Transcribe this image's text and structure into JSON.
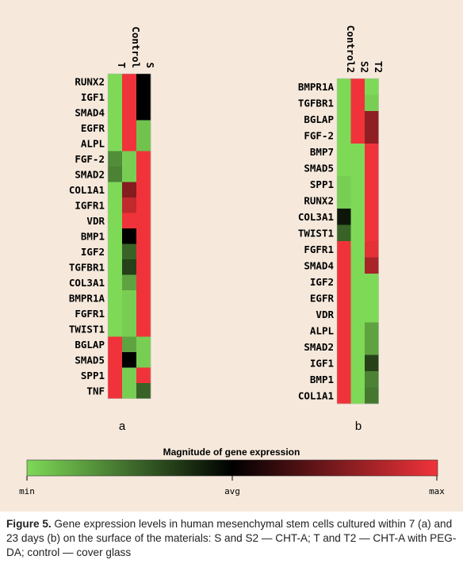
{
  "chart_data": [
    {
      "type": "heatmap",
      "panel": "a",
      "columns": [
        "T",
        "Control",
        "S"
      ],
      "rows": [
        "RUNX2",
        "IGF1",
        "SMAD4",
        "EGFR",
        "ALPL",
        "FGF-2",
        "SMAD2",
        "COL1A1",
        "IGFR1",
        "VDR",
        "BMP1",
        "IGF2",
        "TGFBR1",
        "COL3A1",
        "BMPR1A",
        "FGFR1",
        "TWIST1",
        "BGLAP",
        "SMAD5",
        "SPP1",
        "TNF"
      ],
      "values": [
        [
          -1.0,
          1.0,
          0.0
        ],
        [
          -1.0,
          1.0,
          0.0
        ],
        [
          -1.0,
          1.0,
          0.0
        ],
        [
          -1.0,
          1.0,
          -0.9
        ],
        [
          -1.0,
          1.0,
          -0.9
        ],
        [
          -0.65,
          -0.95,
          1.0
        ],
        [
          -0.6,
          -0.95,
          1.0
        ],
        [
          -1.0,
          0.55,
          1.0
        ],
        [
          -1.0,
          0.8,
          1.0
        ],
        [
          -1.0,
          1.0,
          1.0
        ],
        [
          -1.0,
          0.0,
          1.0
        ],
        [
          -1.0,
          -0.45,
          1.0
        ],
        [
          -1.0,
          -0.3,
          1.0
        ],
        [
          -1.0,
          -0.75,
          1.0
        ],
        [
          -1.0,
          -0.95,
          1.0
        ],
        [
          -1.0,
          -0.95,
          1.0
        ],
        [
          -1.0,
          -0.95,
          1.0
        ],
        [
          1.0,
          -0.75,
          -0.95
        ],
        [
          1.0,
          0.0,
          -0.95
        ],
        [
          1.0,
          -0.95,
          1.0
        ],
        [
          1.0,
          -0.95,
          -0.45
        ]
      ]
    },
    {
      "type": "heatmap",
      "panel": "b",
      "columns": [
        "Control2",
        "S2",
        "T2"
      ],
      "rows": [
        "BMPR1A",
        "TGFBR1",
        "BGLAP",
        "FGF-2",
        "BMP7",
        "SMAD5",
        "SPP1",
        "RUNX2",
        "COL3A1",
        "TWIST1",
        "FGFR1",
        "SMAD4",
        "IGF2",
        "EGFR",
        "VDR",
        "ALPL",
        "SMAD2",
        "IGF1",
        "BMP1",
        "COL1A1"
      ],
      "values": [
        [
          -1.0,
          1.0,
          -1.0
        ],
        [
          -1.0,
          1.0,
          -0.95
        ],
        [
          -1.0,
          1.0,
          0.6
        ],
        [
          -1.0,
          1.0,
          0.6
        ],
        [
          -1.0,
          -1.0,
          1.0
        ],
        [
          -1.0,
          -1.0,
          1.0
        ],
        [
          -0.95,
          -1.0,
          1.0
        ],
        [
          -0.95,
          -1.0,
          1.0
        ],
        [
          -0.1,
          -1.0,
          1.0
        ],
        [
          -0.45,
          -1.0,
          1.0
        ],
        [
          1.0,
          -1.0,
          0.95
        ],
        [
          1.0,
          -1.0,
          0.7
        ],
        [
          1.0,
          -1.0,
          -1.0
        ],
        [
          1.0,
          -1.0,
          -1.0
        ],
        [
          1.0,
          -1.0,
          -1.0
        ],
        [
          1.0,
          -1.0,
          -0.75
        ],
        [
          1.0,
          -1.0,
          -0.75
        ],
        [
          1.0,
          -1.0,
          -0.3
        ],
        [
          1.0,
          -1.0,
          -0.6
        ],
        [
          1.0,
          -1.0,
          -0.55
        ]
      ]
    }
  ],
  "legend": {
    "title": "Magnitude of gene expression",
    "min_label": "min",
    "avg_label": "avg",
    "max_label": "max",
    "colors": {
      "min": "#7ed957",
      "avg": "#000000",
      "max": "#f0333a"
    }
  },
  "caption": {
    "figure_label": "Figure 5.",
    "text": " Gene expression levels in human mesenchymal stem cells cultured within 7 (a) and 23 days (b) on the surface of the materials: S and S2 — CHT-A; T and T2 — CHT-A with PEG-DA; control — cover glass"
  }
}
